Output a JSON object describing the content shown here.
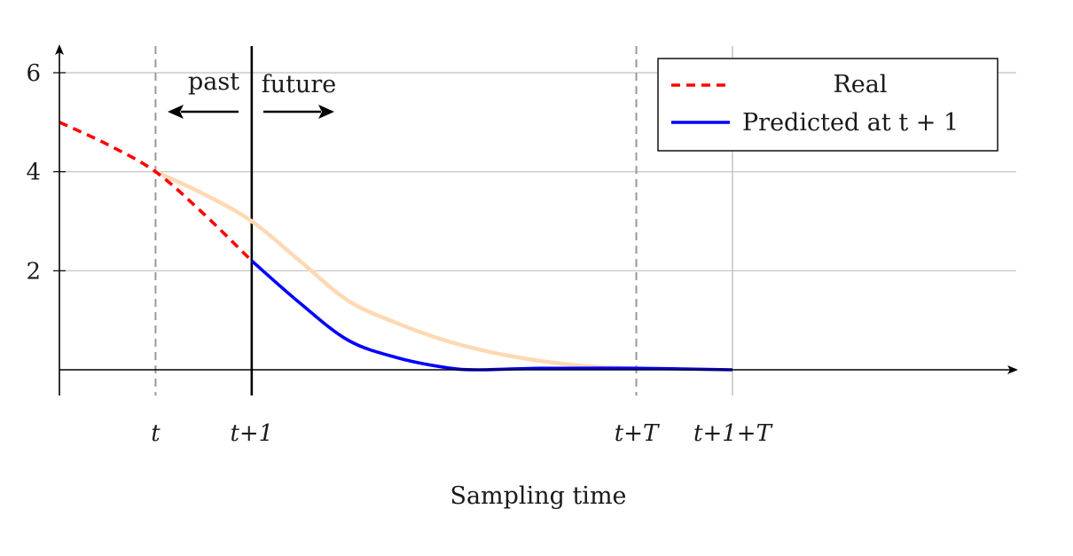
{
  "chart_data": {
    "type": "line",
    "title": "",
    "xlabel": "Sampling time",
    "ylabel": "",
    "xlim": [
      0,
      10
    ],
    "ylim": [
      -0.5,
      6.5
    ],
    "grid": true,
    "legend_position": "top-right",
    "x_ticks": [
      {
        "value": 1,
        "label": "t"
      },
      {
        "value": 2,
        "label": "t+1"
      },
      {
        "value": 6,
        "label": "t+T"
      },
      {
        "value": 7,
        "label": "t+1+T"
      }
    ],
    "y_ticks": [
      {
        "value": 2,
        "label": "2"
      },
      {
        "value": 4,
        "label": "4"
      },
      {
        "value": 6,
        "label": "6"
      }
    ],
    "annotations": {
      "past": "past",
      "future": "future"
    },
    "series": [
      {
        "name": "Real",
        "color": "#ff0000",
        "style": "dashed",
        "x": [
          0,
          0.5,
          1,
          1.5,
          2
        ],
        "y": [
          5.0,
          4.55,
          4.0,
          3.15,
          2.2
        ]
      },
      {
        "name": "Predicted at t + 1",
        "color": "#0000ff",
        "style": "solid",
        "x": [
          2,
          2.5,
          3,
          3.5,
          4,
          4.35,
          5,
          6,
          7
        ],
        "y": [
          2.2,
          1.35,
          0.6,
          0.25,
          0.05,
          0.0,
          0.03,
          0.03,
          0.0
        ]
      },
      {
        "name": "",
        "color": "#ffd9b3",
        "style": "solid",
        "x": [
          1,
          1.5,
          2,
          2.5,
          3,
          3.5,
          4,
          4.5,
          5,
          5.5,
          6
        ],
        "y": [
          4.0,
          3.55,
          3.0,
          2.2,
          1.4,
          0.95,
          0.6,
          0.35,
          0.18,
          0.07,
          0.03
        ]
      }
    ]
  }
}
